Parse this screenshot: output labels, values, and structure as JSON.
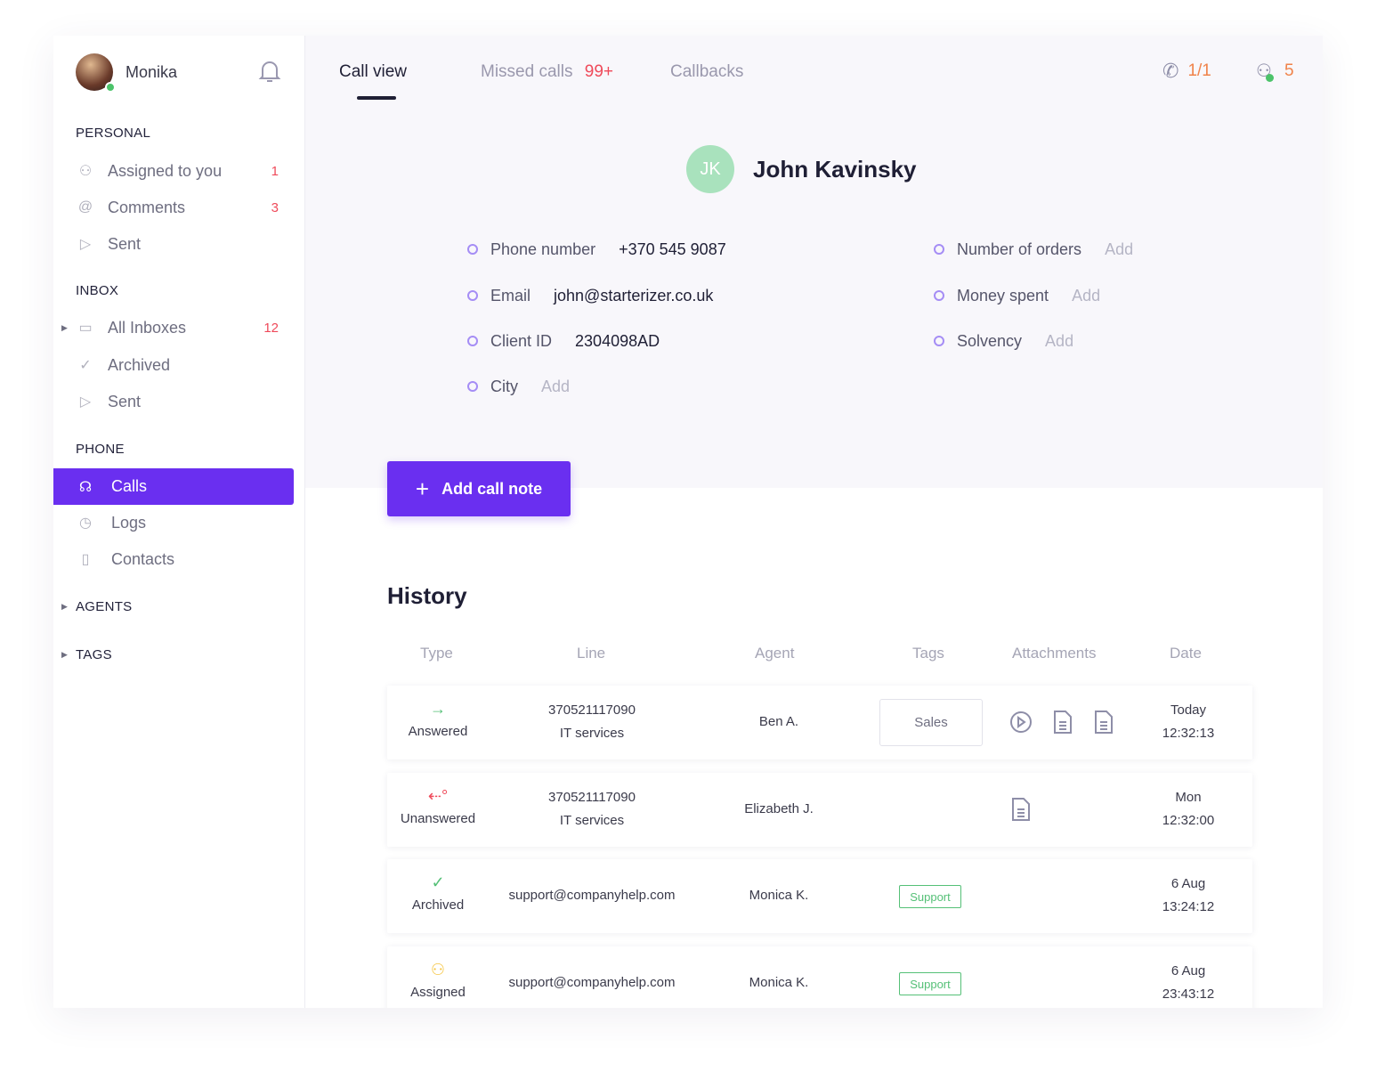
{
  "sidebar": {
    "user": {
      "name": "Monika",
      "status": "online"
    },
    "sections": {
      "personal": "PERSONAL",
      "inbox": "INBOX",
      "phone": "PHONE",
      "agents": "AGENTS",
      "tags": "TAGS"
    },
    "personal": [
      {
        "label": "Assigned to you",
        "count": "1",
        "icon": "user-check-icon"
      },
      {
        "label": "Comments",
        "count": "3",
        "icon": "at-icon"
      },
      {
        "label": "Sent",
        "icon": "send-icon"
      }
    ],
    "inbox": [
      {
        "label": "All Inboxes",
        "count": "12",
        "icon": "inbox-icon"
      },
      {
        "label": "Archived",
        "icon": "check-circle-icon"
      },
      {
        "label": "Sent",
        "icon": "send-icon"
      }
    ],
    "phone": [
      {
        "label": "Calls",
        "icon": "headset-icon",
        "active": true
      },
      {
        "label": "Logs",
        "icon": "clock-icon"
      },
      {
        "label": "Contacts",
        "icon": "book-icon"
      }
    ]
  },
  "tabs": [
    {
      "label": "Call view",
      "active": true
    },
    {
      "label": "Missed calls",
      "badge": "99+"
    },
    {
      "label": "Callbacks"
    }
  ],
  "header": {
    "calls": "1/1",
    "agents": "5"
  },
  "contact": {
    "initials": "JK",
    "name": "John Kavinsky",
    "left": [
      {
        "label": "Phone number",
        "value": "+370 545 9087"
      },
      {
        "label": "Email",
        "value": "john@starterizer.co.uk"
      },
      {
        "label": "Client ID",
        "value": "2304098AD"
      },
      {
        "label": "City",
        "add": "Add"
      }
    ],
    "right": [
      {
        "label": "Number of orders",
        "add": "Add"
      },
      {
        "label": "Money spent",
        "add": "Add"
      },
      {
        "label": "Solvency",
        "add": "Add"
      }
    ]
  },
  "add_note": "Add call note",
  "history": {
    "title": "History",
    "columns": [
      "Type",
      "Line",
      "Agent",
      "Tags",
      "Attachments",
      "Date"
    ],
    "rows": [
      {
        "type": "Answered",
        "line": "370521117090",
        "line2": "IT services",
        "agent": "Ben A.",
        "tag": "Sales",
        "date": "Today",
        "time": "12:32:13"
      },
      {
        "type": "Unanswered",
        "line": "370521117090",
        "line2": "IT services",
        "agent": "Elizabeth J.",
        "date": "Mon",
        "time": "12:32:00"
      },
      {
        "type": "Archived",
        "line": "support@companyhelp.com",
        "agent": "Monica K.",
        "tag": "Support",
        "date": "6 Aug",
        "time": "13:24:12"
      },
      {
        "type": "Assigned",
        "line": "support@companyhelp.com",
        "agent": "Monica K.",
        "tag": "Support",
        "date": "6 Aug",
        "time": "23:43:12"
      }
    ]
  },
  "colors": {
    "accent": "#6a2ff0",
    "badge": "#ef4a5a",
    "orange": "#f0834a",
    "green": "#55c077"
  }
}
